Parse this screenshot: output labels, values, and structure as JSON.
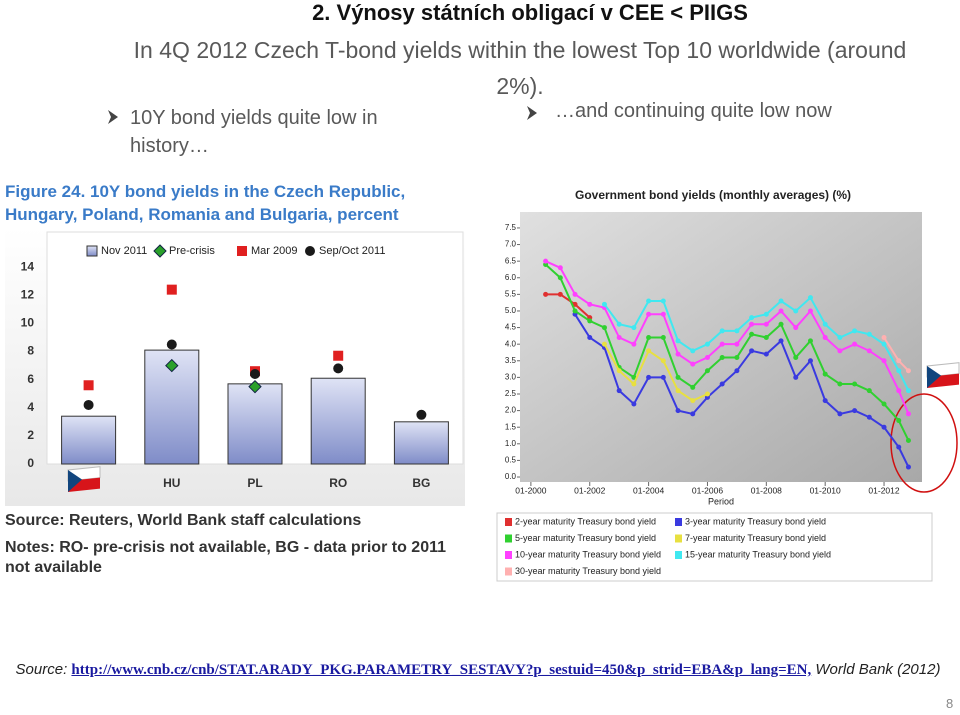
{
  "slide": {
    "title": "2. Výnosy státních obligací v CEE < PIIGS",
    "subtitle": "In 4Q 2012 Czech T-bond yields within the lowest Top 10 worldwide (around 2%).",
    "bullets": [
      "10Y bond yields quite low in history…",
      "…and continuing quite low now"
    ],
    "left_source": "Source: Reuters, World Bank staff calculations",
    "left_notes": "Notes: RO- pre-crisis not available, BG - data prior to 2011 not available",
    "source_label": "Source:",
    "source_link": "http://www.cnb.cz/cnb/STAT.ARADY_PKG.PARAMETRY_SESTAVY?p_sestuid=450&p_strid=EBA&p_lang=EN,",
    "source_rest": "World Bank (2012)",
    "page_number": 8
  },
  "chart_data": [
    {
      "type": "bar",
      "title": "Figure 24. 10Y bond yields in the Czech Republic, Hungary, Poland, Romania and Bulgaria, percent",
      "categories": [
        null,
        "HU",
        "PL",
        "RO",
        "BG"
      ],
      "ylim": [
        0,
        16.5
      ],
      "yticks": [
        0,
        2,
        4,
        6,
        8,
        10,
        12,
        14
      ],
      "series": [
        {
          "name": "Nov 2011",
          "marker": "bar",
          "color": "#8f9bd3",
          "values": [
            3.4,
            8.1,
            5.7,
            6.1,
            3.0
          ]
        },
        {
          "name": "Pre-crisis",
          "marker": "diamond",
          "color": "#2aa02a",
          "values": [
            null,
            7.0,
            5.5,
            null,
            null
          ]
        },
        {
          "name": "Mar 2009",
          "marker": "square",
          "color": "#e02020",
          "values": [
            5.6,
            12.4,
            6.6,
            7.7,
            null
          ]
        },
        {
          "name": "Sep/Oct 2011",
          "marker": "circle",
          "color": "#1a1a1a",
          "values": [
            4.2,
            8.5,
            6.4,
            6.8,
            3.5
          ]
        }
      ]
    },
    {
      "type": "line",
      "title": "Government bond yields (monthly averages)  (%)",
      "x_label": "Period",
      "x": [
        2000.5,
        2001,
        2001.5,
        2002,
        2002.5,
        2003,
        2003.5,
        2004,
        2004.5,
        2005,
        2005.5,
        2006,
        2006.5,
        2007,
        2007.5,
        2008,
        2008.5,
        2009,
        2009.5,
        2010,
        2010.5,
        2011,
        2011.5,
        2012,
        2012.5,
        2012.83
      ],
      "xlim": [
        1999.63,
        2013.29
      ],
      "xticks": [
        {
          "value": 2000,
          "label": "01-2000"
        },
        {
          "value": 2002,
          "label": "01-2002"
        },
        {
          "value": 2004,
          "label": "01-2004"
        },
        {
          "value": 2006,
          "label": "01-2006"
        },
        {
          "value": 2008,
          "label": "01-2008"
        },
        {
          "value": 2010,
          "label": "01-2010"
        },
        {
          "value": 2012,
          "label": "01-2012"
        }
      ],
      "ylim": [
        -0.15,
        7.98
      ],
      "yticks": [
        {
          "value": 0,
          "label": "0.0"
        },
        0.5,
        {
          "value": 1,
          "label": "1.0"
        },
        1.5,
        {
          "value": 2,
          "label": "2.0"
        },
        2.5,
        {
          "value": 3,
          "label": "3.0"
        },
        3.5,
        {
          "value": 4,
          "label": "4.0"
        },
        4.5,
        {
          "value": 5,
          "label": "5.0"
        },
        5.5,
        {
          "value": 6,
          "label": "6.0"
        },
        6.5,
        {
          "value": 7,
          "label": "7.0"
        },
        7.5
      ],
      "series": [
        {
          "name": "2-year maturity Treasury bond yield",
          "color": "#e03030",
          "values": [
            5.5,
            5.5,
            5.2,
            4.8,
            null,
            null,
            null,
            null,
            null,
            null,
            null,
            null,
            null,
            null,
            null,
            null,
            null,
            null,
            null,
            null,
            null,
            null,
            null,
            null,
            null,
            null
          ]
        },
        {
          "name": "3-year maturity Treasury bond yield",
          "color": "#3a3ae0",
          "values": [
            null,
            null,
            4.9,
            4.2,
            3.9,
            2.6,
            2.2,
            3.0,
            3.0,
            2.0,
            1.9,
            2.4,
            2.8,
            3.2,
            3.8,
            3.7,
            4.1,
            3.0,
            3.5,
            2.3,
            1.9,
            2.0,
            1.8,
            1.5,
            0.9,
            0.3
          ]
        },
        {
          "name": "5-year maturity Treasury bond yield",
          "color": "#30d030",
          "values": [
            6.4,
            6.0,
            5.0,
            4.7,
            4.5,
            3.3,
            3.0,
            4.2,
            4.2,
            3.0,
            2.7,
            3.2,
            3.6,
            3.6,
            4.3,
            4.2,
            4.6,
            3.6,
            4.1,
            3.1,
            2.8,
            2.8,
            2.6,
            2.2,
            1.7,
            1.1
          ]
        },
        {
          "name": "7-year maturity Treasury bond yield",
          "color": "#e8e040",
          "values": [
            null,
            null,
            null,
            null,
            4.0,
            3.2,
            2.8,
            3.8,
            3.5,
            2.6,
            2.3,
            2.5,
            null,
            null,
            null,
            null,
            null,
            null,
            null,
            null,
            null,
            null,
            null,
            null,
            null,
            null
          ]
        },
        {
          "name": "10-year maturity Treasury bond yield",
          "color": "#ff40ff",
          "values": [
            6.5,
            6.3,
            5.5,
            5.2,
            5.1,
            4.2,
            4.0,
            4.9,
            4.9,
            3.7,
            3.4,
            3.6,
            4.0,
            4.0,
            4.6,
            4.6,
            5.0,
            4.5,
            5.0,
            4.2,
            3.8,
            4.0,
            3.8,
            3.5,
            2.6,
            1.9
          ]
        },
        {
          "name": "15-year maturity Treasury bond yield",
          "color": "#40e8f0",
          "values": [
            null,
            null,
            null,
            null,
            5.2,
            4.6,
            4.5,
            5.3,
            5.3,
            4.1,
            3.8,
            4.0,
            4.4,
            4.4,
            4.8,
            4.9,
            5.3,
            5.0,
            5.4,
            4.6,
            4.2,
            4.4,
            4.3,
            4.0,
            3.2,
            2.6
          ]
        },
        {
          "name": "30-year maturity Treasury bond yield",
          "color": "#ffb0b0",
          "values": [
            null,
            null,
            null,
            null,
            null,
            null,
            null,
            null,
            null,
            null,
            null,
            null,
            null,
            null,
            null,
            null,
            null,
            null,
            null,
            null,
            null,
            null,
            null,
            4.2,
            3.5,
            3.2
          ]
        }
      ]
    }
  ]
}
